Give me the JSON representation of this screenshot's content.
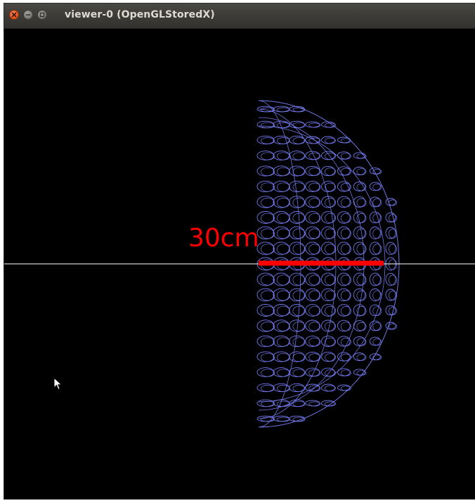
{
  "window": {
    "title": "viewer-0 (OpenGLStoredX)"
  },
  "scene": {
    "scale_label": "30cm",
    "colors": {
      "background": "#000000",
      "detector_wireframe": "#7078e8",
      "scale_bar": "#ff0000",
      "axis_line": "#ffffff"
    }
  },
  "icons": {
    "close": "close-icon",
    "minimize": "minimize-icon",
    "maximize": "maximize-icon",
    "cursor": "mouse-pointer-icon"
  }
}
